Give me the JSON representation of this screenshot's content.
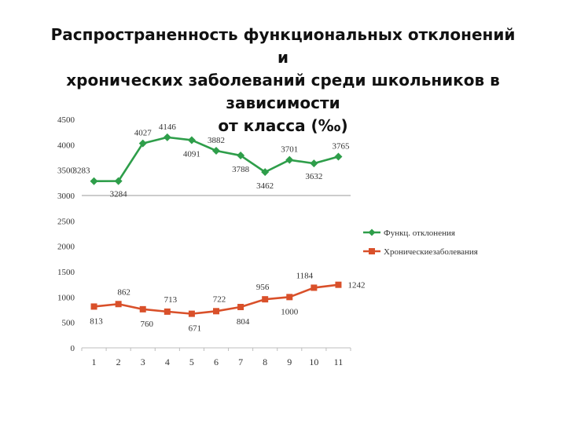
{
  "slide": {
    "title_lines": [
      "Распространенность функциональных отклонений и",
      "хронических заболеваний среди школьников в зависимости",
      "от класса (‰)"
    ]
  },
  "chart_data": {
    "type": "line",
    "categories": [
      "1",
      "2",
      "3",
      "4",
      "5",
      "6",
      "7",
      "8",
      "9",
      "10",
      "11"
    ],
    "ylim": [
      0,
      4500
    ],
    "yticks": [
      0,
      500,
      1000,
      1500,
      2000,
      2500,
      3000,
      3500,
      4000,
      4500
    ],
    "grid": "horizontal at 3000 only",
    "legend_position": "right",
    "series": [
      {
        "name": "Функц. отклонения",
        "color": "#2e9e4a",
        "marker": "diamond",
        "values": [
          3283,
          3284,
          4027,
          4146,
          4091,
          3882,
          3788,
          3462,
          3701,
          3632,
          3765
        ]
      },
      {
        "name": "Хроническиезаболевания",
        "color": "#d9502a",
        "marker": "square",
        "values": [
          813,
          862,
          760,
          713,
          671,
          722,
          804,
          956,
          1000,
          1184,
          1242
        ]
      }
    ]
  }
}
